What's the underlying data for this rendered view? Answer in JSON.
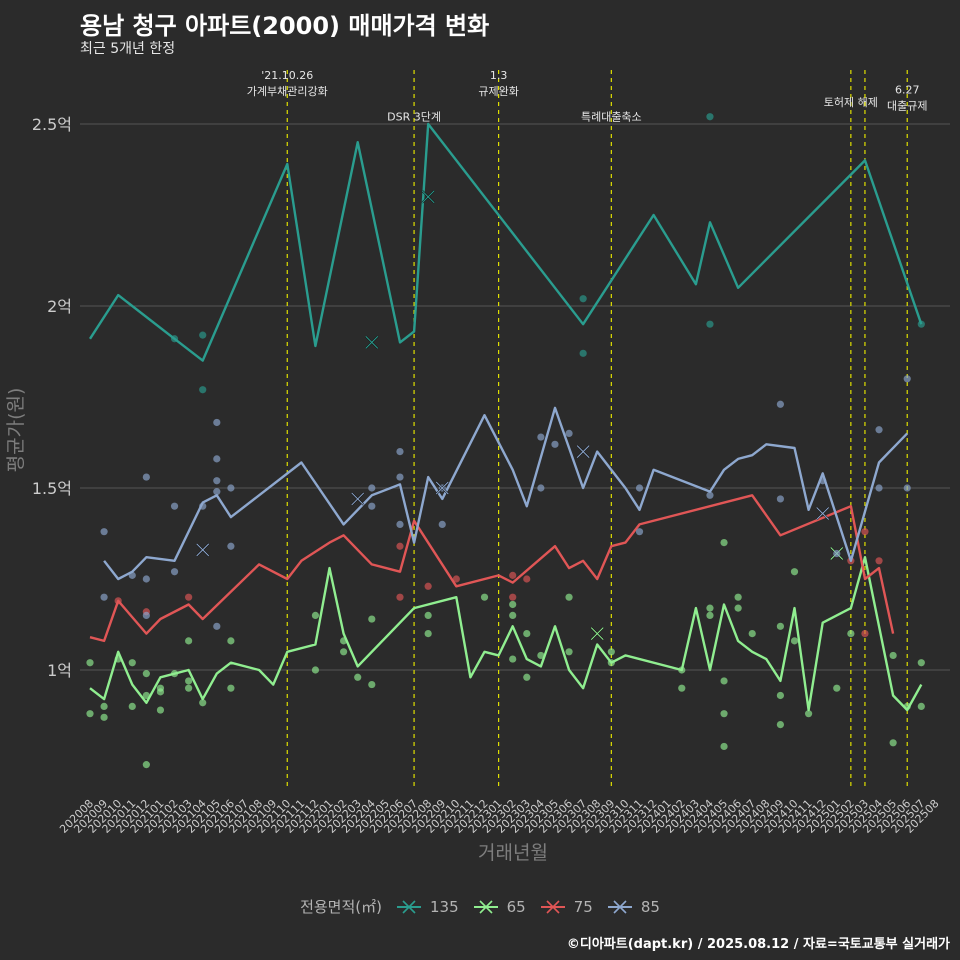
{
  "title": "용남 청구 아파트(2000) 매매가격 변화",
  "subtitle": "최근 5개년 한정",
  "credit": "©디아파트(dapt.kr) / 2025.08.12 / 자료=국토교통부 실거래가",
  "chart_data": {
    "type": "line",
    "xlabel": "거래년월",
    "ylabel": "평균가(원)",
    "grid": true,
    "legend_title": "전용면적(㎡)",
    "legend_position": "bottom",
    "x": [
      "202008",
      "202009",
      "202010",
      "202011",
      "202012",
      "202101",
      "202102",
      "202103",
      "202104",
      "202105",
      "202106",
      "202107",
      "202108",
      "202109",
      "202110",
      "202111",
      "202112",
      "202201",
      "202202",
      "202203",
      "202204",
      "202205",
      "202206",
      "202207",
      "202208",
      "202209",
      "202210",
      "202211",
      "202212",
      "202301",
      "202302",
      "202303",
      "202304",
      "202305",
      "202306",
      "202307",
      "202308",
      "202309",
      "202310",
      "202311",
      "202312",
      "202401",
      "202402",
      "202403",
      "202404",
      "202405",
      "202406",
      "202407",
      "202408",
      "202409",
      "202410",
      "202411",
      "202412",
      "202501",
      "202502",
      "202503",
      "202504",
      "202505",
      "202506",
      "202507",
      "202508"
    ],
    "ylim": [
      0.8,
      2.6
    ],
    "yticks": [
      1.0,
      1.5,
      2.0,
      2.5
    ],
    "ytick_labels": [
      "1억",
      "1.5억",
      "2억",
      "2.5억"
    ],
    "series": [
      {
        "name": "135",
        "color": "#2a9d8f",
        "line": [
          [
            0,
            1.91
          ],
          [
            2,
            2.03
          ],
          [
            6,
            1.91
          ],
          [
            8,
            1.85
          ],
          [
            14,
            2.39
          ],
          [
            16,
            1.89
          ],
          [
            19,
            2.45
          ],
          [
            22,
            1.9
          ],
          [
            23,
            1.93
          ],
          [
            24,
            2.5
          ],
          [
            35,
            1.95
          ],
          [
            40,
            2.25
          ],
          [
            43,
            2.06
          ],
          [
            44,
            2.23
          ],
          [
            46,
            2.05
          ],
          [
            55,
            2.4
          ],
          [
            59,
            1.95
          ]
        ],
        "points": [
          [
            6,
            1.91
          ],
          [
            8,
            1.92
          ],
          [
            8,
            1.77
          ],
          [
            35,
            2.02
          ],
          [
            35,
            1.87
          ],
          [
            44,
            2.52
          ],
          [
            44,
            1.95
          ],
          [
            59,
            1.95
          ]
        ],
        "crosses": [
          [
            20,
            1.9
          ],
          [
            24,
            2.3
          ]
        ]
      },
      {
        "name": "65",
        "color": "#90ee90",
        "line": [
          [
            0,
            0.95
          ],
          [
            1,
            0.92
          ],
          [
            2,
            1.05
          ],
          [
            3,
            0.96
          ],
          [
            4,
            0.91
          ],
          [
            5,
            0.98
          ],
          [
            7,
            1.0
          ],
          [
            8,
            0.92
          ],
          [
            9,
            0.99
          ],
          [
            10,
            1.02
          ],
          [
            12,
            1.0
          ],
          [
            13,
            0.96
          ],
          [
            14,
            1.05
          ],
          [
            16,
            1.07
          ],
          [
            17,
            1.28
          ],
          [
            18,
            1.1
          ],
          [
            19,
            1.01
          ],
          [
            23,
            1.17
          ],
          [
            26,
            1.2
          ],
          [
            27,
            0.98
          ],
          [
            28,
            1.05
          ],
          [
            29,
            1.04
          ],
          [
            30,
            1.12
          ],
          [
            31,
            1.03
          ],
          [
            32,
            1.01
          ],
          [
            33,
            1.12
          ],
          [
            34,
            1.0
          ],
          [
            35,
            0.95
          ],
          [
            36,
            1.07
          ],
          [
            37,
            1.02
          ],
          [
            38,
            1.04
          ],
          [
            42,
            1.0
          ],
          [
            43,
            1.17
          ],
          [
            44,
            1.0
          ],
          [
            45,
            1.18
          ],
          [
            46,
            1.08
          ],
          [
            47,
            1.05
          ],
          [
            48,
            1.03
          ],
          [
            49,
            0.97
          ],
          [
            50,
            1.17
          ],
          [
            51,
            0.89
          ],
          [
            52,
            1.13
          ],
          [
            54,
            1.17
          ],
          [
            55,
            1.31
          ],
          [
            57,
            0.93
          ],
          [
            58,
            0.89
          ],
          [
            59,
            0.96
          ]
        ],
        "points": [
          [
            0,
            1.02
          ],
          [
            0,
            0.88
          ],
          [
            1,
            0.87
          ],
          [
            1,
            0.9
          ],
          [
            2,
            1.03
          ],
          [
            3,
            1.02
          ],
          [
            3,
            0.9
          ],
          [
            4,
            0.99
          ],
          [
            4,
            0.93
          ],
          [
            4,
            0.74
          ],
          [
            5,
            0.94
          ],
          [
            5,
            0.95
          ],
          [
            5,
            0.89
          ],
          [
            6,
            0.99
          ],
          [
            7,
            1.08
          ],
          [
            7,
            0.97
          ],
          [
            7,
            0.95
          ],
          [
            8,
            0.91
          ],
          [
            10,
            1.08
          ],
          [
            10,
            0.95
          ],
          [
            16,
            1.15
          ],
          [
            16,
            1.0
          ],
          [
            18,
            1.08
          ],
          [
            18,
            1.05
          ],
          [
            19,
            0.98
          ],
          [
            20,
            1.14
          ],
          [
            20,
            0.96
          ],
          [
            24,
            1.15
          ],
          [
            24,
            1.1
          ],
          [
            28,
            1.2
          ],
          [
            30,
            1.18
          ],
          [
            30,
            1.15
          ],
          [
            30,
            1.03
          ],
          [
            31,
            1.1
          ],
          [
            31,
            0.98
          ],
          [
            32,
            1.04
          ],
          [
            34,
            1.2
          ],
          [
            34,
            1.05
          ],
          [
            37,
            1.05
          ],
          [
            37,
            1.02
          ],
          [
            42,
            0.95
          ],
          [
            42,
            1.0
          ],
          [
            44,
            1.15
          ],
          [
            44,
            1.17
          ],
          [
            45,
            1.35
          ],
          [
            45,
            0.97
          ],
          [
            45,
            0.88
          ],
          [
            45,
            0.79
          ],
          [
            46,
            1.2
          ],
          [
            46,
            1.17
          ],
          [
            47,
            1.1
          ],
          [
            49,
            1.12
          ],
          [
            49,
            0.93
          ],
          [
            49,
            0.85
          ],
          [
            50,
            1.27
          ],
          [
            50,
            1.08
          ],
          [
            51,
            0.88
          ],
          [
            53,
            0.95
          ],
          [
            54,
            1.1
          ],
          [
            57,
            1.04
          ],
          [
            57,
            0.8
          ],
          [
            58,
            0.9
          ],
          [
            59,
            1.02
          ],
          [
            59,
            0.9
          ]
        ],
        "crosses": [
          [
            36,
            1.1
          ],
          [
            53,
            1.32
          ]
        ]
      },
      {
        "name": "75",
        "color": "#e05656",
        "line": [
          [
            0,
            1.09
          ],
          [
            1,
            1.08
          ],
          [
            2,
            1.19
          ],
          [
            4,
            1.1
          ],
          [
            5,
            1.14
          ],
          [
            7,
            1.18
          ],
          [
            8,
            1.14
          ],
          [
            12,
            1.29
          ],
          [
            14,
            1.25
          ],
          [
            15,
            1.3
          ],
          [
            17,
            1.35
          ],
          [
            18,
            1.37
          ],
          [
            20,
            1.29
          ],
          [
            22,
            1.27
          ],
          [
            23,
            1.41
          ],
          [
            26,
            1.23
          ],
          [
            29,
            1.26
          ],
          [
            30,
            1.24
          ],
          [
            33,
            1.34
          ],
          [
            34,
            1.28
          ],
          [
            35,
            1.3
          ],
          [
            36,
            1.25
          ],
          [
            37,
            1.34
          ],
          [
            38,
            1.35
          ],
          [
            39,
            1.4
          ],
          [
            47,
            1.48
          ],
          [
            49,
            1.37
          ],
          [
            54,
            1.45
          ],
          [
            55,
            1.25
          ],
          [
            56,
            1.28
          ],
          [
            57,
            1.1
          ]
        ],
        "points": [
          [
            2,
            1.19
          ],
          [
            4,
            1.16
          ],
          [
            7,
            1.2
          ],
          [
            22,
            1.34
          ],
          [
            22,
            1.2
          ],
          [
            24,
            1.23
          ],
          [
            26,
            1.25
          ],
          [
            30,
            1.26
          ],
          [
            30,
            1.2
          ],
          [
            31,
            1.25
          ],
          [
            54,
            1.3
          ],
          [
            55,
            1.38
          ],
          [
            55,
            1.1
          ],
          [
            56,
            1.3
          ]
        ],
        "crosses": []
      },
      {
        "name": "85",
        "color": "#8ea8cf",
        "line": [
          [
            1,
            1.3
          ],
          [
            2,
            1.25
          ],
          [
            3,
            1.27
          ],
          [
            4,
            1.31
          ],
          [
            6,
            1.3
          ],
          [
            8,
            1.46
          ],
          [
            9,
            1.48
          ],
          [
            10,
            1.42
          ],
          [
            15,
            1.57
          ],
          [
            18,
            1.4
          ],
          [
            20,
            1.48
          ],
          [
            22,
            1.51
          ],
          [
            23,
            1.35
          ],
          [
            24,
            1.53
          ],
          [
            25,
            1.47
          ],
          [
            28,
            1.7
          ],
          [
            30,
            1.55
          ],
          [
            31,
            1.45
          ],
          [
            33,
            1.72
          ],
          [
            34,
            1.61
          ],
          [
            35,
            1.5
          ],
          [
            36,
            1.6
          ],
          [
            38,
            1.5
          ],
          [
            39,
            1.44
          ],
          [
            40,
            1.55
          ],
          [
            44,
            1.49
          ],
          [
            45,
            1.55
          ],
          [
            46,
            1.58
          ],
          [
            47,
            1.59
          ],
          [
            48,
            1.62
          ],
          [
            50,
            1.61
          ],
          [
            51,
            1.44
          ],
          [
            52,
            1.54
          ],
          [
            54,
            1.3
          ],
          [
            56,
            1.57
          ],
          [
            58,
            1.65
          ]
        ],
        "points": [
          [
            1,
            1.38
          ],
          [
            1,
            1.2
          ],
          [
            3,
            1.26
          ],
          [
            4,
            1.53
          ],
          [
            4,
            1.25
          ],
          [
            4,
            1.15
          ],
          [
            6,
            1.45
          ],
          [
            6,
            1.27
          ],
          [
            8,
            1.45
          ],
          [
            9,
            1.68
          ],
          [
            9,
            1.58
          ],
          [
            9,
            1.52
          ],
          [
            9,
            1.49
          ],
          [
            9,
            1.12
          ],
          [
            10,
            1.5
          ],
          [
            10,
            1.34
          ],
          [
            20,
            1.5
          ],
          [
            20,
            1.45
          ],
          [
            22,
            1.6
          ],
          [
            22,
            1.53
          ],
          [
            22,
            1.4
          ],
          [
            25,
            1.5
          ],
          [
            25,
            1.4
          ],
          [
            32,
            1.64
          ],
          [
            32,
            1.5
          ],
          [
            33,
            1.62
          ],
          [
            34,
            1.65
          ],
          [
            39,
            1.38
          ],
          [
            39,
            1.5
          ],
          [
            44,
            1.48
          ],
          [
            49,
            1.73
          ],
          [
            49,
            1.47
          ],
          [
            52,
            1.52
          ],
          [
            53,
            1.32
          ],
          [
            56,
            1.66
          ],
          [
            56,
            1.5
          ],
          [
            58,
            1.8
          ],
          [
            58,
            1.5
          ]
        ],
        "crosses": [
          [
            8,
            1.33
          ],
          [
            19,
            1.47
          ],
          [
            25,
            1.5
          ],
          [
            35,
            1.6
          ],
          [
            52,
            1.43
          ]
        ]
      }
    ],
    "events": [
      {
        "x": 14,
        "label": "'21.10.26\n가계부채관리강화",
        "label_y": 2.58
      },
      {
        "x": 23,
        "label": "DSR 3단계",
        "label_y": 2.51
      },
      {
        "x": 29,
        "label": "1.3\n규제완화",
        "label_y": 2.58
      },
      {
        "x": 37,
        "label": "특례대출축소",
        "label_y": 2.51
      },
      {
        "x": 54,
        "label": "토허제 해제",
        "label_y": 2.55
      },
      {
        "x": 55,
        "label": "",
        "label_y": 2.55
      },
      {
        "x": 58,
        "label": "6.27\n대출규제",
        "label_y": 2.54
      }
    ]
  }
}
